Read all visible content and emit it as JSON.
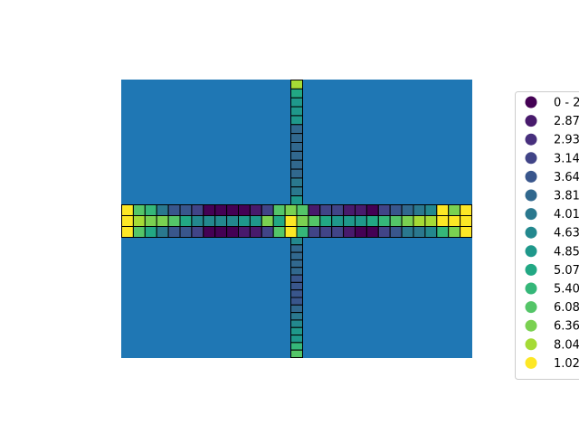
{
  "chart_data": {
    "type": "heatmap",
    "title": "",
    "xlabel": "",
    "ylabel": "",
    "background_color": "#1f77b4",
    "cell_edge_color": "#000000",
    "grid": false,
    "axes_visible": false,
    "legend_placement": "right",
    "legend": [
      {
        "label": "0 - 2",
        "color": "#440154"
      },
      {
        "label": "2.87",
        "color": "#481a6c"
      },
      {
        "label": "2.93",
        "color": "#472f7d"
      },
      {
        "label": "3.14",
        "color": "#414487"
      },
      {
        "label": "3.64",
        "color": "#39568c"
      },
      {
        "label": "3.81",
        "color": "#31688e"
      },
      {
        "label": "4.01",
        "color": "#2a788e"
      },
      {
        "label": "4.63",
        "color": "#23888e"
      },
      {
        "label": "4.85",
        "color": "#1f988b"
      },
      {
        "label": "5.07",
        "color": "#22a884"
      },
      {
        "label": "5.40",
        "color": "#35b779"
      },
      {
        "label": "6.08",
        "color": "#54c568"
      },
      {
        "label": "6.36",
        "color": "#7ad151"
      },
      {
        "label": "8.04",
        "color": "#a5db36"
      },
      {
        "label": "1.02",
        "color": "#fde725"
      }
    ],
    "horizontal_arm": {
      "rows": [
        [
          14,
          11,
          10,
          6,
          4,
          4,
          3,
          0,
          0,
          0,
          0,
          1,
          3,
          11,
          12,
          11,
          1,
          3,
          3,
          1,
          1,
          0,
          3,
          4,
          5,
          6,
          7,
          14,
          12,
          14
        ],
        [
          14,
          13,
          12,
          12,
          11,
          9,
          7,
          7,
          7,
          7,
          8,
          8,
          12,
          9,
          14,
          12,
          11,
          9,
          8,
          8,
          8,
          9,
          10,
          11,
          12,
          13,
          13,
          14,
          14,
          14
        ],
        [
          14,
          11,
          9,
          6,
          4,
          4,
          3,
          0,
          0,
          0,
          1,
          1,
          3,
          11,
          14,
          10,
          3,
          3,
          3,
          1,
          0,
          0,
          3,
          4,
          6,
          6,
          7,
          10,
          12,
          14
        ]
      ]
    },
    "vertical_arm_top": [
      13,
      9,
      8,
      8,
      8,
      5,
      5,
      5,
      5,
      5,
      5,
      6,
      6,
      8
    ],
    "vertical_arm_bottom": [
      7,
      5,
      5,
      5,
      5,
      4,
      4,
      4,
      4,
      5,
      6,
      7,
      8,
      8,
      10,
      11
    ]
  }
}
